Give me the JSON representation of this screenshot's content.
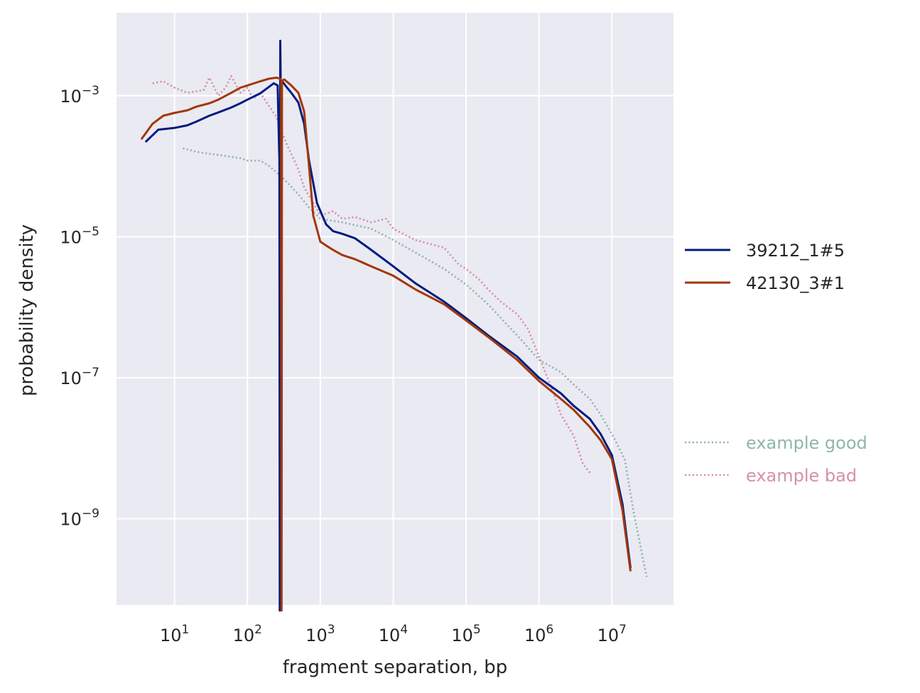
{
  "chart_data": {
    "type": "line",
    "title": "",
    "xlabel": "fragment separation, bp",
    "ylabel": "probability density",
    "xscale": "log",
    "yscale": "log",
    "xlim": [
      1.6,
      70000000
    ],
    "ylim": [
      6e-11,
      0.015
    ],
    "grid": true,
    "x_ticks": [
      {
        "value": 10,
        "label": "10",
        "exp": "1"
      },
      {
        "value": 100,
        "label": "10",
        "exp": "2"
      },
      {
        "value": 1000,
        "label": "10",
        "exp": "3"
      },
      {
        "value": 10000,
        "label": "10",
        "exp": "4"
      },
      {
        "value": 100000,
        "label": "10",
        "exp": "5"
      },
      {
        "value": 1000000,
        "label": "10",
        "exp": "6"
      },
      {
        "value": 10000000,
        "label": "10",
        "exp": "7"
      }
    ],
    "y_ticks": [
      {
        "value": 0.001,
        "label": "10",
        "exp": "−3"
      },
      {
        "value": 1e-05,
        "label": "10",
        "exp": "−5"
      },
      {
        "value": 1e-07,
        "label": "10",
        "exp": "−7"
      },
      {
        "value": 1e-09,
        "label": "10",
        "exp": "−9"
      }
    ],
    "legend_position": "right",
    "series": [
      {
        "name": "39212_1#5",
        "color": "#001c7f",
        "style": "solid",
        "x": [
          4,
          6,
          10,
          15,
          20,
          30,
          40,
          60,
          80,
          100,
          150,
          200,
          230,
          260,
          275,
          278,
          282,
          286,
          300,
          350,
          400,
          500,
          600,
          700,
          900,
          1200,
          1500,
          2000,
          3000,
          5000,
          10000,
          20000,
          50000,
          100000,
          200000,
          500000,
          1000000,
          2000000,
          3000000,
          5000000,
          7000000,
          10000000,
          14000000,
          18000000
        ],
        "y": [
          0.00022,
          0.00033,
          0.00035,
          0.00038,
          0.00043,
          0.00052,
          0.00058,
          0.00068,
          0.00078,
          0.00088,
          0.00108,
          0.00135,
          0.0015,
          0.0014,
          0.00012,
          5e-11,
          0.006,
          0.0015,
          0.0016,
          0.0013,
          0.0011,
          0.0008,
          0.0004,
          0.00012,
          3e-05,
          1.5e-05,
          1.2e-05,
          1.1e-05,
          9.5e-06,
          6.5e-06,
          3.8e-06,
          2.2e-06,
          1.2e-06,
          7e-07,
          4e-07,
          2e-07,
          1e-07,
          6e-08,
          4e-08,
          2.6e-08,
          1.6e-08,
          8e-09,
          1.6e-09,
          2e-10
        ]
      },
      {
        "name": "42130_3#1",
        "color": "#a23707",
        "style": "solid",
        "x": [
          3.5,
          5,
          7,
          10,
          15,
          20,
          30,
          40,
          60,
          80,
          100,
          150,
          200,
          250,
          280,
          290,
          294,
          298,
          303,
          320,
          400,
          500,
          600,
          700,
          800,
          1000,
          1200,
          1500,
          2000,
          3000,
          5000,
          10000,
          20000,
          50000,
          100000,
          200000,
          500000,
          1000000,
          2000000,
          3000000,
          5000000,
          7000000,
          10000000,
          14000000,
          18000000
        ],
        "y": [
          0.00024,
          0.0004,
          0.00052,
          0.00057,
          0.00062,
          0.0007,
          0.00078,
          0.00088,
          0.0011,
          0.0013,
          0.0014,
          0.0016,
          0.00175,
          0.0018,
          0.00175,
          0.00165,
          5e-11,
          0.0016,
          0.00165,
          0.0017,
          0.0014,
          0.0011,
          0.0006,
          0.0001,
          2e-05,
          8.5e-06,
          7.5e-06,
          6.5e-06,
          5.5e-06,
          4.8e-06,
          3.8e-06,
          2.8e-06,
          1.8e-06,
          1.1e-06,
          6.5e-07,
          3.8e-07,
          1.8e-07,
          9e-08,
          5e-08,
          3.5e-08,
          2e-08,
          1.3e-08,
          7e-09,
          1.3e-09,
          1.8e-10
        ]
      },
      {
        "name": "example good",
        "color": "#8eb6ad",
        "style": "dotted",
        "x": [
          13,
          20,
          30,
          50,
          80,
          100,
          150,
          200,
          300,
          500,
          700,
          1000,
          2000,
          5000,
          10000,
          20000,
          50000,
          100000,
          200000,
          500000,
          1000000,
          2000000,
          3000000,
          5000000,
          7000000,
          10000000,
          15000000,
          20000000,
          30000000
        ],
        "y": [
          0.00018,
          0.00016,
          0.00015,
          0.00014,
          0.00013,
          0.00012,
          0.00012,
          0.0001,
          7e-05,
          4e-05,
          2.6e-05,
          1.8e-05,
          1.6e-05,
          1.3e-05,
          9e-06,
          6e-06,
          3.5e-06,
          2.1e-06,
          1.1e-06,
          4e-07,
          1.8e-07,
          1.2e-07,
          8e-08,
          5e-08,
          3e-08,
          1.6e-08,
          7e-09,
          1.2e-09,
          1.5e-10
        ]
      },
      {
        "name": "example bad",
        "color": "#d68fae",
        "style": "dotted",
        "x": [
          5,
          7,
          10,
          15,
          25,
          30,
          40,
          50,
          60,
          80,
          100,
          120,
          150,
          200,
          250,
          300,
          350,
          400,
          500,
          600,
          800,
          1000,
          1500,
          2000,
          3000,
          5000,
          8000,
          10000,
          20000,
          50000,
          80000,
          100000,
          150000,
          200000,
          300000,
          500000,
          700000,
          1000000,
          1500000,
          2000000,
          3000000,
          4000000,
          5000000
        ],
        "y": [
          0.0015,
          0.0016,
          0.0013,
          0.0011,
          0.0012,
          0.0018,
          0.001,
          0.0013,
          0.0019,
          0.0011,
          0.0013,
          0.0009,
          0.0011,
          0.0007,
          0.0005,
          0.0003,
          0.0002,
          0.00015,
          9e-05,
          5e-05,
          3e-05,
          2e-05,
          2.3e-05,
          1.8e-05,
          1.9e-05,
          1.6e-05,
          1.8e-05,
          1.3e-05,
          9e-06,
          7e-06,
          4e-06,
          3.5e-06,
          2.5e-06,
          1.8e-06,
          1.2e-06,
          8e-07,
          5e-07,
          2e-07,
          7e-08,
          3e-08,
          1.5e-08,
          6e-09,
          4.5e-09
        ]
      }
    ]
  },
  "legend": {
    "groups": [
      {
        "items": [
          {
            "label": "39212_1#5",
            "color": "#001c7f",
            "style": "solid"
          },
          {
            "label": "42130_3#1",
            "color": "#a23707",
            "style": "solid"
          }
        ],
        "text_color": "#262626"
      },
      {
        "items": [
          {
            "label": "example good",
            "color": "#8eb6ad",
            "style": "dotted"
          },
          {
            "label": "example bad",
            "color": "#d68fae",
            "style": "dotted"
          }
        ],
        "text_color": "series"
      }
    ]
  },
  "colors": {
    "plot_background": "#eaeaf2",
    "grid": "#ffffff",
    "text": "#262626"
  }
}
